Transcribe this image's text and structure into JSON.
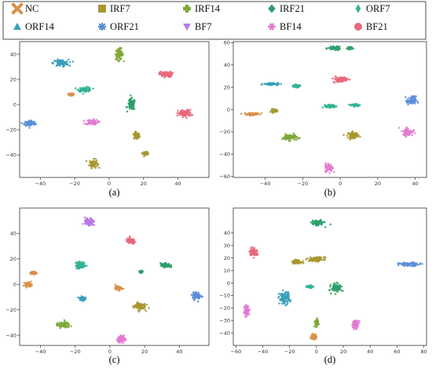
{
  "legend": [
    {
      "label": "NC",
      "color": "#d9904a",
      "marker": "x"
    },
    {
      "label": "IRF7",
      "color": "#a8962f",
      "marker": "square"
    },
    {
      "label": "IRF14",
      "color": "#7ea83a",
      "marker": "plus"
    },
    {
      "label": "IRF21",
      "color": "#2f9e6b",
      "marker": "diamond"
    },
    {
      "label": "ORF7",
      "color": "#34b396",
      "marker": "diamond-thin"
    },
    {
      "label": "ORF14",
      "color": "#3a9fb8",
      "marker": "triangle-up"
    },
    {
      "label": "ORF21",
      "color": "#5b8fd8",
      "marker": "star"
    },
    {
      "label": "BF7",
      "color": "#b77ae6",
      "marker": "triangle-down"
    },
    {
      "label": "BF14",
      "color": "#e27bd2",
      "marker": "asterisk"
    },
    {
      "label": "BF21",
      "color": "#e8687a",
      "marker": "circle"
    }
  ],
  "chart_data": [
    {
      "type": "scatter",
      "caption": "(a)",
      "xlim": [
        -52,
        58
      ],
      "ylim": [
        -58,
        50
      ],
      "xticks": [
        -40,
        -20,
        0,
        20,
        40
      ],
      "yticks": [
        -40,
        -20,
        0,
        20,
        40
      ],
      "clusters": [
        {
          "class": "NC",
          "x": -22,
          "y": 8,
          "sx": 1.5,
          "sy": 0.8
        },
        {
          "class": "IRF7",
          "x": 16,
          "y": -25,
          "sx": 1.5,
          "sy": 2.5
        },
        {
          "class": "IRF7",
          "x": -9,
          "y": -47,
          "sx": 2.2,
          "sy": 3
        },
        {
          "class": "IRF7",
          "x": 21,
          "y": -39,
          "sx": 1.2,
          "sy": 1.2
        },
        {
          "class": "IRF14",
          "x": 6,
          "y": 40,
          "sx": 2,
          "sy": 4
        },
        {
          "class": "IRF21",
          "x": 13,
          "y": 0,
          "sx": 2,
          "sy": 4
        },
        {
          "class": "ORF7",
          "x": -14,
          "y": 12,
          "sx": 3.5,
          "sy": 1.6
        },
        {
          "class": "ORF14",
          "x": -28,
          "y": 33,
          "sx": 4,
          "sy": 2.4
        },
        {
          "class": "ORF21",
          "x": -46,
          "y": -15,
          "sx": 3,
          "sy": 2.2
        },
        {
          "class": "BF14",
          "x": -10,
          "y": -14,
          "sx": 3.2,
          "sy": 1.8
        },
        {
          "class": "BF21",
          "x": 33,
          "y": 24,
          "sx": 3.3,
          "sy": 2
        },
        {
          "class": "BF21",
          "x": 44,
          "y": -7,
          "sx": 3.5,
          "sy": 2.5
        }
      ]
    },
    {
      "type": "scatter",
      "caption": "(b)",
      "xlim": [
        -57,
        46
      ],
      "ylim": [
        -61,
        61
      ],
      "xticks": [
        -40,
        -20,
        0,
        20,
        40
      ],
      "yticks": [
        -60,
        -40,
        -20,
        0,
        20,
        40,
        60
      ],
      "clusters": [
        {
          "class": "NC",
          "x": -47,
          "y": -4,
          "sx": 3.5,
          "sy": 0.9
        },
        {
          "class": "IRF7",
          "x": -35,
          "y": -1,
          "sx": 1.5,
          "sy": 1.2
        },
        {
          "class": "IRF7",
          "x": 7,
          "y": -23,
          "sx": 2.5,
          "sy": 2.5
        },
        {
          "class": "IRF14",
          "x": -27,
          "y": -25,
          "sx": 3.5,
          "sy": 2.5
        },
        {
          "class": "IRF21",
          "x": -3,
          "y": 55,
          "sx": 3,
          "sy": 1.3
        },
        {
          "class": "IRF21",
          "x": 5,
          "y": 55,
          "sx": 1.2,
          "sy": 1
        },
        {
          "class": "ORF7",
          "x": -23,
          "y": 21,
          "sx": 1.4,
          "sy": 1
        },
        {
          "class": "ORF14",
          "x": -37,
          "y": 23,
          "sx": 3.5,
          "sy": 0.9
        },
        {
          "class": "ORF21",
          "x": 38,
          "y": 8,
          "sx": 2.2,
          "sy": 3.5
        },
        {
          "class": "ORF7",
          "x": -5,
          "y": 3,
          "sx": 2.4,
          "sy": 1.2
        },
        {
          "class": "ORF7",
          "x": 8,
          "y": 4,
          "sx": 2.3,
          "sy": 1
        },
        {
          "class": "BF14",
          "x": -6,
          "y": -52,
          "sx": 1.8,
          "sy": 3.5
        },
        {
          "class": "BF14",
          "x": 36,
          "y": -20,
          "sx": 2.5,
          "sy": 3
        },
        {
          "class": "BF21",
          "x": 0,
          "y": 27,
          "sx": 3.5,
          "sy": 2.2
        }
      ]
    },
    {
      "type": "scatter",
      "caption": "(c)",
      "xlim": [
        -52,
        57
      ],
      "ylim": [
        -48,
        60
      ],
      "xticks": [
        -40,
        -20,
        0,
        20,
        40
      ],
      "yticks": [
        -40,
        -20,
        0,
        20,
        40
      ],
      "clusters": [
        {
          "class": "NC",
          "x": -47,
          "y": 0,
          "sx": 1.8,
          "sy": 1.5
        },
        {
          "class": "NC",
          "x": -44,
          "y": 9,
          "sx": 1.4,
          "sy": 1
        },
        {
          "class": "NC",
          "x": 5,
          "y": -3,
          "sx": 1.8,
          "sy": 1.4
        },
        {
          "class": "IRF7",
          "x": 17,
          "y": -17,
          "sx": 3,
          "sy": 2.7
        },
        {
          "class": "IRF14",
          "x": -27,
          "y": -32,
          "sx": 3.5,
          "sy": 2
        },
        {
          "class": "IRF21",
          "x": 32,
          "y": 15,
          "sx": 2.5,
          "sy": 1.5
        },
        {
          "class": "IRF21",
          "x": 18,
          "y": 10,
          "sx": 0.9,
          "sy": 0.7
        },
        {
          "class": "ORF7",
          "x": -17,
          "y": 15,
          "sx": 2.5,
          "sy": 2.5
        },
        {
          "class": "ORF14",
          "x": -16,
          "y": -11,
          "sx": 1.4,
          "sy": 1.3
        },
        {
          "class": "ORF21",
          "x": 50,
          "y": -9,
          "sx": 2.3,
          "sy": 2.6
        },
        {
          "class": "BF7",
          "x": -12,
          "y": 49,
          "sx": 2.3,
          "sy": 3
        },
        {
          "class": "BF14",
          "x": 7,
          "y": -43,
          "sx": 2.5,
          "sy": 2
        },
        {
          "class": "BF21",
          "x": 12,
          "y": 34,
          "sx": 2.6,
          "sy": 2
        }
      ]
    },
    {
      "type": "scatter",
      "caption": "(d)",
      "xlim": [
        -62,
        82
      ],
      "ylim": [
        -50,
        60
      ],
      "xticks": [
        -60,
        -40,
        -20,
        0,
        20,
        40,
        60,
        80
      ],
      "yticks": [
        -40,
        -30,
        -20,
        -10,
        0,
        10,
        20,
        30,
        40
      ],
      "clusters": [
        {
          "class": "NC",
          "x": -2,
          "y": -43,
          "sx": 1.6,
          "sy": 2
        },
        {
          "class": "IRF7",
          "x": -15,
          "y": 17,
          "sx": 3,
          "sy": 1.2
        },
        {
          "class": "IRF7",
          "x": 0,
          "y": 19,
          "sx": 5,
          "sy": 1.5
        },
        {
          "class": "IRF14",
          "x": 0,
          "y": -32,
          "sx": 1.2,
          "sy": 2.5
        },
        {
          "class": "IRF21",
          "x": 1,
          "y": 48,
          "sx": 4,
          "sy": 2
        },
        {
          "class": "IRF21",
          "x": 15,
          "y": -4,
          "sx": 3.5,
          "sy": 3
        },
        {
          "class": "ORF7",
          "x": -5,
          "y": -3,
          "sx": 2,
          "sy": 0.8
        },
        {
          "class": "ORF14",
          "x": -24,
          "y": -12,
          "sx": 3.5,
          "sy": 4.5
        },
        {
          "class": "ORF21",
          "x": 69,
          "y": 15,
          "sx": 7,
          "sy": 1.2
        },
        {
          "class": "BF14",
          "x": -52,
          "y": -22,
          "sx": 1.6,
          "sy": 4
        },
        {
          "class": "BF14",
          "x": 29,
          "y": -33,
          "sx": 2.3,
          "sy": 2.8
        },
        {
          "class": "BF21",
          "x": -47,
          "y": 25,
          "sx": 2.5,
          "sy": 3
        }
      ]
    }
  ]
}
